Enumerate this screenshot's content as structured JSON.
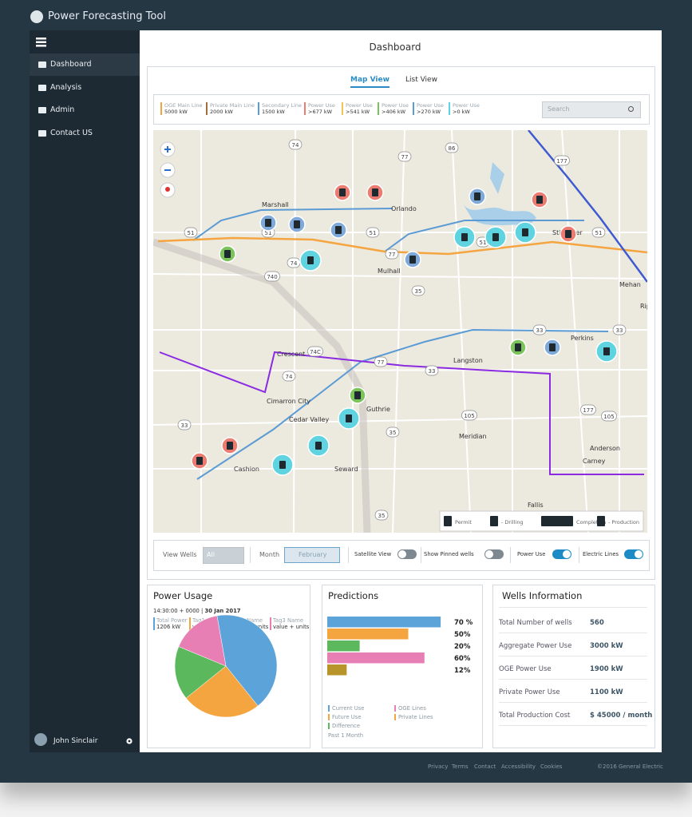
{
  "app": {
    "title": "Power Forecasting Tool"
  },
  "sidebar": {
    "items": [
      "Dashboard",
      "Analysis",
      "Admin",
      "Contact US"
    ],
    "active": 0,
    "user": "John Sinclair"
  },
  "header": {
    "title": "Dashboard"
  },
  "tabs": {
    "items": [
      "Map View",
      "List View"
    ],
    "active": 0
  },
  "line_legend": [
    {
      "name": "OGE Main Line",
      "value": "5000 kW",
      "color": "#f5a540"
    },
    {
      "name": "Private Main Line",
      "value": "2000 kW",
      "color": "#a0703a"
    },
    {
      "name": "Secondary Line",
      "value": "1500 kW",
      "color": "#5b9bd5"
    },
    {
      "name": "Power Use",
      "value": ">677 kW",
      "color": "#ec7b70"
    },
    {
      "name": "Power Use",
      "value": ">541 kW",
      "color": "#f3c552"
    },
    {
      "name": "Power Use",
      "value": ">406 kW",
      "color": "#7cc35c"
    },
    {
      "name": "Power Use",
      "value": ">270 kW",
      "color": "#5b9bd5"
    },
    {
      "name": "Power Use",
      "value": ">0 kW",
      "color": "#5fd3e0"
    }
  ],
  "search": {
    "placeholder": "Search"
  },
  "map": {
    "places": [
      "Marshall",
      "Orlando",
      "Stillwater",
      "Mulhall",
      "Mehan",
      "Rip",
      "Perkins",
      "Crescent",
      "Langston",
      "Cimarron City",
      "Guthrie",
      "Cedar Valley",
      "Meridian",
      "Anderson",
      "Carney",
      "Cashion",
      "Seward",
      "Fallis"
    ],
    "routes": [
      "74",
      "77",
      "86",
      "177",
      "51",
      "51",
      "51",
      "51",
      "51",
      "74",
      "740",
      "77",
      "35",
      "33",
      "33",
      "74C",
      "77",
      "33",
      "74",
      "33",
      "105",
      "177",
      "105",
      "35",
      "35"
    ],
    "key": [
      "Permit",
      "- Drilling",
      "Completion",
      "- Production"
    ]
  },
  "controls": {
    "view_wells": {
      "label": "View Wells",
      "value": "All"
    },
    "month": {
      "label": "Month",
      "value": "February"
    },
    "toggles": [
      {
        "label": "Satellite View",
        "on": false
      },
      {
        "label": "Show Pinned wells",
        "on": false
      },
      {
        "label": "Power Use",
        "on": true
      },
      {
        "label": "Electric Lines",
        "on": true
      }
    ]
  },
  "power_usage": {
    "title": "Power Usage",
    "time": "14:30:00 + 0000 |",
    "date": "30 Jan 2017",
    "series": [
      {
        "name": "Total Power",
        "reading": "1206 kW",
        "color": "#5ba3d9",
        "share": 42
      },
      {
        "name": "Tag1 Name",
        "reading": "value + units",
        "color": "#f5a540",
        "share": 25
      },
      {
        "name": "Tag2 Name",
        "reading": "value + units",
        "color": "#5cb85c",
        "share": 17
      },
      {
        "name": "Tag3 Name",
        "reading": "value + units",
        "color": "#e77fb5",
        "share": 16
      }
    ]
  },
  "predictions": {
    "title": "Predictions",
    "values": [
      70,
      50,
      20,
      60,
      12
    ],
    "value_labels": [
      "70 %",
      "50%",
      "20%",
      "60%",
      "12%"
    ],
    "colors": [
      "#5ba3d9",
      "#f5a540",
      "#5cb85c",
      "#e77fb5",
      "#b8952a"
    ],
    "legend": [
      {
        "name": "Current Use",
        "color": "#5ba3d9"
      },
      {
        "name": "OGE Lines",
        "color": "#e77fb5"
      },
      {
        "name": "Future Use",
        "color": "#f5a540"
      },
      {
        "name": "Private Lines",
        "color": "#f5a540"
      },
      {
        "name": "Difference",
        "color": "#5cb85c"
      }
    ],
    "period": "Past 1 Month"
  },
  "wells_info": {
    "title": "Wells Information",
    "rows": [
      [
        "Total Number of wells",
        560
      ],
      [
        "Aggregate Power Use",
        "3000 kW"
      ],
      [
        "OGE Power Use",
        "1900 kW"
      ],
      [
        "Private Power Use",
        "1100 kW"
      ],
      [
        "Total Production Cost",
        "$ 45000 / month"
      ]
    ]
  },
  "footer": {
    "links": [
      "Privacy",
      "Terms",
      "Contact",
      "Accessibility",
      "Cookies"
    ],
    "copyright": "©2016 General Electric"
  }
}
